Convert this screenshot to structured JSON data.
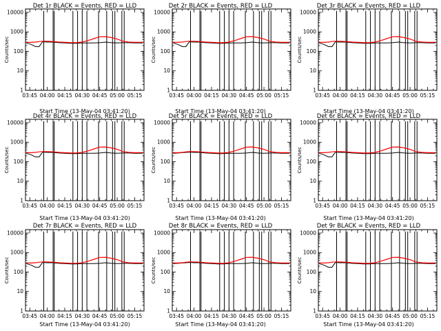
{
  "figure": {
    "background": "#ffffff",
    "axis_color": "#000000",
    "events_color": "#000000",
    "lld_color": "#ff0000"
  },
  "chart_data": [
    {
      "type": "line",
      "title": "Det 1r BLACK = Events, RED = LLD",
      "xlabel": "Start Time (13-May-04 03:41:20)",
      "ylabel": "Counts/sec",
      "ylog": true,
      "ylim": [
        1,
        15000
      ],
      "yticks": [
        "1",
        "10",
        "100",
        "1000",
        "10000"
      ],
      "xticks": [
        "03:45",
        "04:00",
        "04:15",
        "04:30",
        "04:45",
        "05:00",
        "05:15"
      ],
      "xlim": [
        "03:41:20",
        "05:23"
      ],
      "events_variant": "dip"
    },
    {
      "type": "line",
      "title": "Det 2r BLACK = Events, RED = LLD",
      "xlabel": "Start Time (13-May-04 03:41:20)",
      "ylabel": "Counts/sec",
      "ylog": true,
      "ylim": [
        1,
        15000
      ],
      "yticks": [
        "1",
        "10",
        "100",
        "1000",
        "10000"
      ],
      "xticks": [
        "03:45",
        "04:00",
        "04:15",
        "04:30",
        "04:45",
        "05:00",
        "05:15"
      ],
      "xlim": [
        "03:41:20",
        "05:23"
      ],
      "events_variant": "dip"
    },
    {
      "type": "line",
      "title": "Det 3r BLACK = Events, RED = LLD",
      "xlabel": "Start Time (13-May-04 03:41:20)",
      "ylabel": "Counts/sec",
      "ylog": true,
      "ylim": [
        1,
        15000
      ],
      "yticks": [
        "1",
        "10",
        "100",
        "1000",
        "10000"
      ],
      "xticks": [
        "03:45",
        "04:00",
        "04:15",
        "04:30",
        "04:45",
        "05:00",
        "05:15"
      ],
      "xlim": [
        "03:41:20",
        "05:23"
      ],
      "events_variant": "dip"
    },
    {
      "type": "line",
      "title": "Det 4r BLACK = Events, RED = LLD",
      "xlabel": "Start Time (13-May-04 03:41:20)",
      "ylabel": "Counts/sec",
      "ylog": true,
      "ylim": [
        1,
        15000
      ],
      "yticks": [
        "1",
        "10",
        "100",
        "1000",
        "10000"
      ],
      "xticks": [
        "03:45",
        "04:00",
        "04:15",
        "04:30",
        "04:45",
        "05:00",
        "05:15"
      ],
      "xlim": [
        "03:41:20",
        "05:23"
      ],
      "events_variant": "dip"
    },
    {
      "type": "line",
      "title": "Det 5r BLACK = Events, RED = LLD",
      "xlabel": "Start Time (13-May-04 03:41:20)",
      "ylabel": "Counts/sec",
      "ylog": true,
      "ylim": [
        1,
        15000
      ],
      "yticks": [
        "1",
        "10",
        "100",
        "1000",
        "10000"
      ],
      "xticks": [
        "03:45",
        "04:00",
        "04:15",
        "04:30",
        "04:45",
        "05:00",
        "05:15"
      ],
      "xlim": [
        "03:41:20",
        "05:23"
      ],
      "events_variant": "flat"
    },
    {
      "type": "line",
      "title": "Det 6r BLACK = Events, RED = LLD",
      "xlabel": "Start Time (13-May-04 03:41:20)",
      "ylabel": "Counts/sec",
      "ylog": true,
      "ylim": [
        1,
        15000
      ],
      "yticks": [
        "1",
        "10",
        "100",
        "1000",
        "10000"
      ],
      "xticks": [
        "03:45",
        "04:00",
        "04:15",
        "04:30",
        "04:45",
        "05:00",
        "05:15"
      ],
      "xlim": [
        "03:41:20",
        "05:23"
      ],
      "events_variant": "dip"
    },
    {
      "type": "line",
      "title": "Det 7r BLACK = Events, RED = LLD",
      "xlabel": "Start Time (13-May-04 03:41:20)",
      "ylabel": "Counts/sec",
      "ylog": true,
      "ylim": [
        1,
        15000
      ],
      "yticks": [
        "1",
        "10",
        "100",
        "1000",
        "10000"
      ],
      "xticks": [
        "03:45",
        "04:00",
        "04:15",
        "04:30",
        "04:45",
        "05:00",
        "05:15"
      ],
      "xlim": [
        "03:41:20",
        "05:23"
      ],
      "events_variant": "dip"
    },
    {
      "type": "line",
      "title": "Det 8r BLACK = Events, RED = LLD",
      "xlabel": "Start Time (13-May-04 03:41:20)",
      "ylabel": "Counts/sec",
      "ylog": true,
      "ylim": [
        1,
        15000
      ],
      "yticks": [
        "1",
        "10",
        "100",
        "1000",
        "10000"
      ],
      "xticks": [
        "03:45",
        "04:00",
        "04:15",
        "04:30",
        "04:45",
        "05:00",
        "05:15"
      ],
      "xlim": [
        "03:41:20",
        "05:23"
      ],
      "events_variant": "flat"
    },
    {
      "type": "line",
      "title": "Det 9r BLACK = Events, RED = LLD",
      "xlabel": "Start Time (13-May-04 03:41:20)",
      "ylabel": "Counts/sec",
      "ylog": true,
      "ylim": [
        1,
        15000
      ],
      "yticks": [
        "1",
        "10",
        "100",
        "1000",
        "10000"
      ],
      "xticks": [
        "03:45",
        "04:00",
        "04:15",
        "04:30",
        "04:45",
        "05:00",
        "05:15"
      ],
      "xlim": [
        "03:41:20",
        "05:23"
      ],
      "events_variant": "dip"
    }
  ],
  "series_template": {
    "x": [
      "03:42",
      "03:46",
      "03:50",
      "03:53",
      "03:56",
      "04:00",
      "04:05",
      "04:10",
      "04:15",
      "04:20",
      "04:25",
      "04:30",
      "04:35",
      "04:40",
      "04:45",
      "04:50",
      "04:55",
      "05:00",
      "05:05",
      "05:10",
      "05:15",
      "05:22"
    ],
    "lld": [
      290,
      290,
      300,
      320,
      330,
      330,
      320,
      300,
      290,
      280,
      280,
      300,
      360,
      450,
      560,
      570,
      510,
      430,
      330,
      300,
      290,
      290
    ],
    "events_dip": [
      270,
      230,
      175,
      175,
      310,
      300,
      300,
      280,
      270,
      260,
      260,
      270,
      270,
      270,
      280,
      300,
      280,
      270,
      280,
      280,
      270,
      270
    ],
    "events_flat": [
      270,
      280,
      290,
      300,
      310,
      300,
      300,
      280,
      270,
      260,
      260,
      270,
      270,
      270,
      280,
      300,
      280,
      270,
      280,
      280,
      270,
      270
    ],
    "spikes": [
      "03:57",
      "04:05",
      "04:06",
      "04:22",
      "04:26",
      "04:30",
      "04:34",
      "04:44",
      "04:51",
      "04:56",
      "04:58",
      "05:04",
      "05:06"
    ],
    "spike_range": [
      1,
      12000
    ]
  }
}
